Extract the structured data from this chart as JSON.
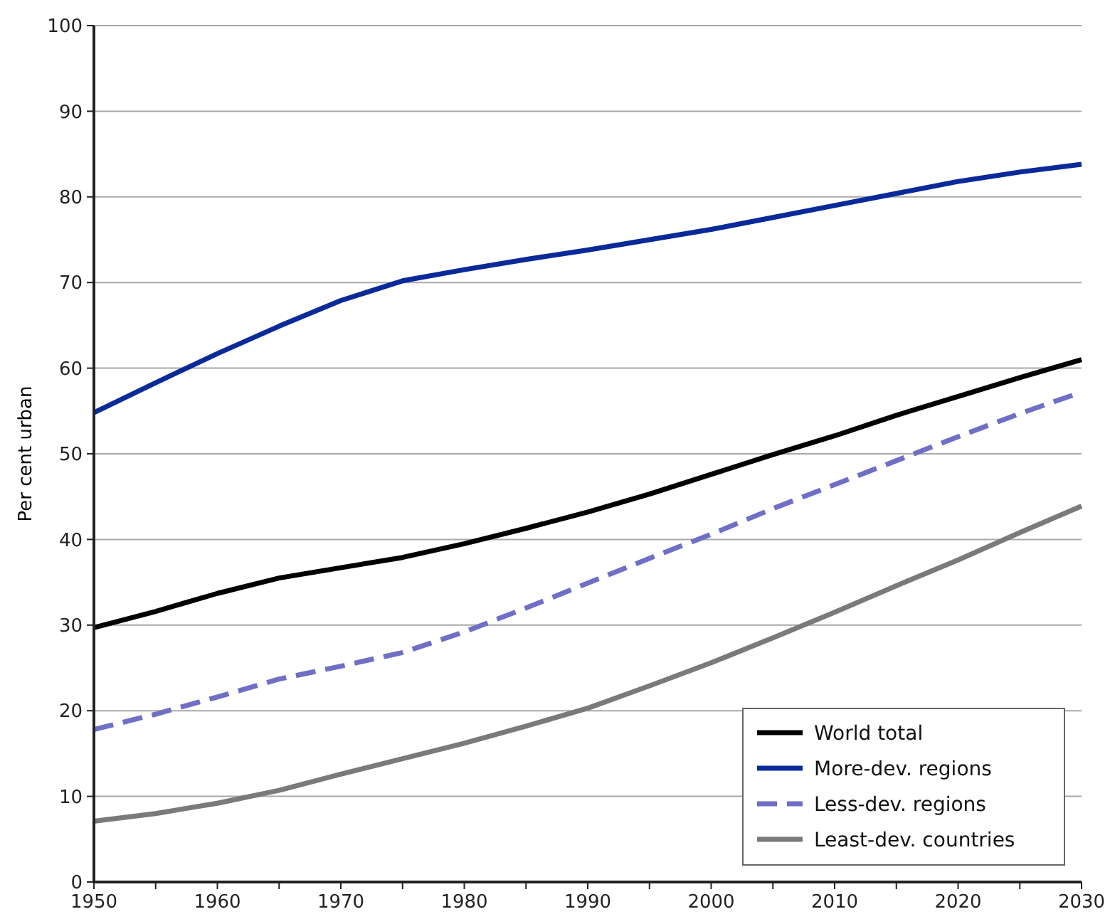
{
  "chart_data": {
    "type": "line",
    "ylabel": "Per cent urban",
    "x": [
      1950,
      1955,
      1960,
      1965,
      1970,
      1975,
      1980,
      1985,
      1990,
      1995,
      2000,
      2005,
      2010,
      2015,
      2020,
      2025,
      2030
    ],
    "series": [
      {
        "name": "World total",
        "color": "#000000",
        "values": [
          29.7,
          31.6,
          33.7,
          35.5,
          36.7,
          37.9,
          39.5,
          41.3,
          43.2,
          45.3,
          47.6,
          49.9,
          52.1,
          54.5,
          56.7,
          58.9,
          61.0
        ]
      },
      {
        "name": "More-dev. regions",
        "color": "#0a2a9a",
        "values": [
          54.8,
          58.3,
          61.7,
          64.9,
          67.9,
          70.2,
          71.5,
          72.7,
          73.8,
          75.0,
          76.2,
          77.6,
          79.0,
          80.4,
          81.8,
          82.9,
          83.8
        ]
      },
      {
        "name": "Less-dev. regions",
        "color": "#6f6fc6",
        "line_style": "dashed",
        "values": [
          17.8,
          19.6,
          21.6,
          23.7,
          25.2,
          26.8,
          29.2,
          32.0,
          34.9,
          37.8,
          40.6,
          43.6,
          46.4,
          49.2,
          52.0,
          54.7,
          57.2
        ]
      },
      {
        "name": "Least-dev. countries",
        "color": "#7a7a7a",
        "values": [
          7.1,
          8.0,
          9.2,
          10.7,
          12.6,
          14.4,
          16.2,
          18.2,
          20.3,
          22.9,
          25.6,
          28.5,
          31.5,
          34.6,
          37.6,
          40.8,
          43.9
        ]
      }
    ],
    "xlim": [
      1950,
      2030
    ],
    "xticks": [
      1950,
      {
        "value": 1955,
        "label": null
      },
      1960,
      {
        "value": 1965,
        "label": null
      },
      1970,
      {
        "value": 1975,
        "label": null
      },
      1980,
      {
        "value": 1985,
        "label": null
      },
      1990,
      {
        "value": 1995,
        "label": null
      },
      2000,
      {
        "value": 2005,
        "label": null
      },
      2010,
      {
        "value": 2015,
        "label": null
      },
      2020,
      {
        "value": 2025,
        "label": null
      },
      2030
    ],
    "ylim": [
      0,
      100
    ],
    "yticks": [
      0,
      10,
      20,
      30,
      40,
      50,
      60,
      70,
      80,
      90,
      100
    ],
    "grid": "y",
    "legend": "bottom right",
    "marker": "none",
    "line_style": "solid"
  }
}
